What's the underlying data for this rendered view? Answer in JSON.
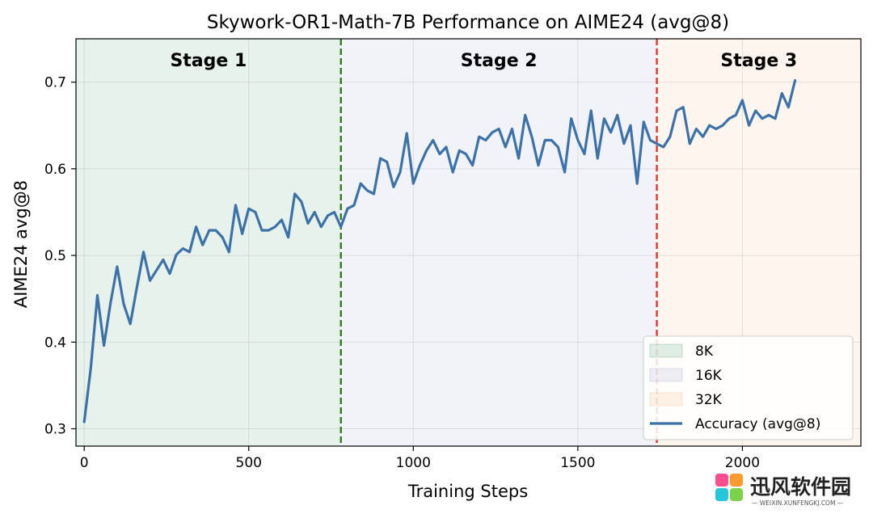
{
  "chart_data": {
    "type": "line",
    "title": "Skywork-OR1-Math-7B Performance on AIME24 (avg@8)",
    "xlabel": "Training Steps",
    "ylabel": "AIME24 avg@8",
    "xlim": [
      -25,
      2360
    ],
    "ylim": [
      0.28,
      0.75
    ],
    "xticks": [
      0,
      500,
      1000,
      1500,
      2000
    ],
    "xtick_labels": [
      "0",
      "500",
      "1000",
      "1500",
      "2000"
    ],
    "yticks": [
      0.3,
      0.4,
      0.5,
      0.6,
      0.7
    ],
    "ytick_labels": [
      "0.3",
      "0.4",
      "0.5",
      "0.6",
      "0.7"
    ],
    "grid": true,
    "legend_position": "lower-right",
    "stages": [
      {
        "label": "Stage 1",
        "legend": "8K",
        "start": -25,
        "end": 780,
        "color": "#2e8b57"
      },
      {
        "label": "Stage 2",
        "legend": "16K",
        "start": 780,
        "end": 1740,
        "color": "#8a8ec5"
      },
      {
        "label": "Stage 3",
        "legend": "32K",
        "start": 1740,
        "end": 2360,
        "color": "#f4a460"
      }
    ],
    "vlines": [
      {
        "x": 780,
        "color": "#2e7d1a"
      },
      {
        "x": 1740,
        "color": "#e8332a"
      }
    ],
    "series": [
      {
        "name": "Accuracy (avg@8)",
        "color": "#3c72a8",
        "x": [
          0,
          20,
          40,
          60,
          80,
          100,
          120,
          140,
          160,
          180,
          200,
          220,
          240,
          260,
          280,
          300,
          320,
          340,
          360,
          380,
          400,
          420,
          440,
          460,
          480,
          500,
          520,
          540,
          560,
          580,
          600,
          620,
          640,
          660,
          680,
          700,
          720,
          740,
          760,
          780,
          800,
          820,
          840,
          860,
          880,
          900,
          920,
          940,
          960,
          980,
          1000,
          1020,
          1040,
          1060,
          1080,
          1100,
          1120,
          1140,
          1160,
          1180,
          1200,
          1220,
          1240,
          1260,
          1280,
          1300,
          1320,
          1340,
          1360,
          1380,
          1400,
          1420,
          1440,
          1460,
          1480,
          1500,
          1520,
          1540,
          1560,
          1580,
          1600,
          1620,
          1640,
          1660,
          1680,
          1700,
          1720,
          1740,
          1760,
          1780,
          1800,
          1820,
          1840,
          1860,
          1880,
          1900,
          1920,
          1940,
          1960,
          1980,
          2000,
          2020,
          2040,
          2060,
          2080,
          2100,
          2120,
          2140,
          2160
        ],
        "values": [
          0.308,
          0.37,
          0.454,
          0.396,
          0.445,
          0.487,
          0.444,
          0.421,
          0.463,
          0.504,
          0.471,
          0.483,
          0.495,
          0.479,
          0.501,
          0.508,
          0.504,
          0.533,
          0.512,
          0.529,
          0.529,
          0.521,
          0.504,
          0.558,
          0.525,
          0.554,
          0.55,
          0.529,
          0.529,
          0.533,
          0.541,
          0.521,
          0.571,
          0.562,
          0.537,
          0.55,
          0.533,
          0.546,
          0.55,
          0.533,
          0.554,
          0.558,
          0.583,
          0.575,
          0.571,
          0.612,
          0.608,
          0.579,
          0.596,
          0.641,
          0.583,
          0.604,
          0.621,
          0.633,
          0.617,
          0.625,
          0.596,
          0.621,
          0.617,
          0.604,
          0.637,
          0.633,
          0.642,
          0.646,
          0.625,
          0.646,
          0.612,
          0.662,
          0.637,
          0.604,
          0.633,
          0.633,
          0.625,
          0.596,
          0.658,
          0.633,
          0.617,
          0.667,
          0.612,
          0.658,
          0.642,
          0.662,
          0.629,
          0.65,
          0.583,
          0.654,
          0.633,
          0.629,
          0.625,
          0.637,
          0.667,
          0.671,
          0.629,
          0.646,
          0.637,
          0.65,
          0.646,
          0.65,
          0.658,
          0.662,
          0.679,
          0.65,
          0.667,
          0.658,
          0.662,
          0.658,
          0.687,
          0.671,
          0.702
        ]
      }
    ]
  },
  "watermark": {
    "brand": "迅风软件园",
    "url": "— WEIXIN.XUNFENGKJ.COM —"
  }
}
